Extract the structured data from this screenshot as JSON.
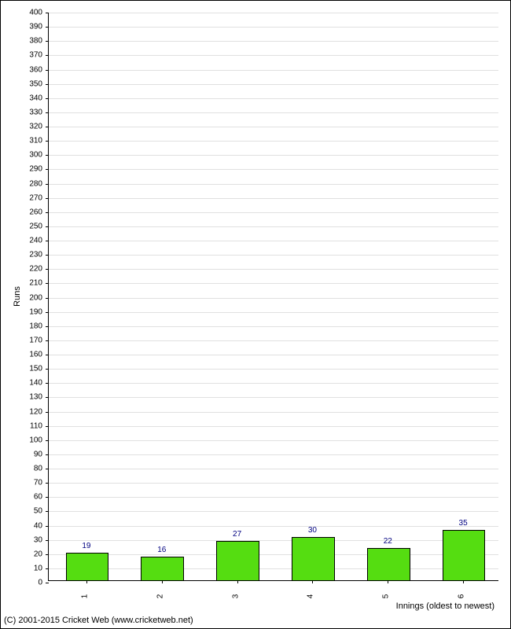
{
  "chart": {
    "type": "bar",
    "categories": [
      "1",
      "2",
      "3",
      "4",
      "5",
      "6"
    ],
    "values": [
      19,
      16,
      27,
      30,
      22,
      35
    ],
    "bar_color": "#55dd11",
    "bar_border_color": "#000000",
    "value_label_color": "#000080",
    "background_color": "#ffffff",
    "grid_color": "#e0e0e0",
    "axis_color": "#000000",
    "ylabel": "Runs",
    "xlabel": "Innings (oldest to newest)",
    "ylim": [
      0,
      400
    ],
    "ytick_step": 10,
    "bar_width_ratio": 0.55,
    "tick_fontsize": 10,
    "label_fontsize": 11,
    "value_fontsize": 10
  },
  "copyright": "(C) 2001-2015 Cricket Web (www.cricketweb.net)"
}
